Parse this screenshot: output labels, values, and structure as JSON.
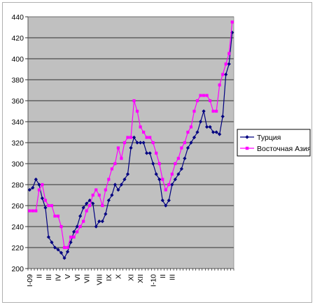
{
  "chart_data": {
    "type": "line",
    "title": "",
    "xlabel": "",
    "ylabel": "",
    "ylim": [
      200,
      440
    ],
    "ytick_step": 20,
    "grid": "horizontal",
    "plot_background": "#c0c0c0",
    "legend_position": "right",
    "x_tick_labels": [
      {
        "index": 0,
        "label": "I-09"
      },
      {
        "index": 3,
        "label": "II"
      },
      {
        "index": 6,
        "label": "III"
      },
      {
        "index": 9,
        "label": "IV"
      },
      {
        "index": 12,
        "label": "V"
      },
      {
        "index": 15,
        "label": "VI"
      },
      {
        "index": 18,
        "label": "VII"
      },
      {
        "index": 22,
        "label": "VIII"
      },
      {
        "index": 25,
        "label": "IX"
      },
      {
        "index": 28,
        "label": "X"
      },
      {
        "index": 32,
        "label": "XI"
      },
      {
        "index": 35,
        "label": "XII"
      },
      {
        "index": 39,
        "label": "I-10"
      },
      {
        "index": 42,
        "label": "II"
      },
      {
        "index": 45,
        "label": "III"
      }
    ],
    "series": [
      {
        "name": "Турция",
        "color": "#000080",
        "marker": "diamond",
        "values": [
          275,
          277,
          285,
          280,
          267,
          258,
          230,
          225,
          220,
          218,
          215,
          210,
          216,
          225,
          235,
          240,
          250,
          258,
          262,
          265,
          262,
          240,
          245,
          245,
          252,
          265,
          270,
          280,
          275,
          280,
          285,
          290,
          315,
          325,
          320,
          320,
          320,
          310,
          310,
          300,
          290,
          285,
          265,
          260,
          265,
          280,
          285,
          290,
          295,
          305,
          315,
          320,
          325,
          330,
          340,
          350,
          335,
          335,
          330,
          330,
          328,
          345,
          385,
          395,
          425
        ]
      },
      {
        "name": "Восточная Азия",
        "color": "#ff00ff",
        "marker": "square",
        "values": [
          255,
          255,
          255,
          275,
          280,
          265,
          260,
          260,
          250,
          250,
          240,
          220,
          220,
          230,
          230,
          235,
          240,
          245,
          255,
          260,
          270,
          275,
          270,
          260,
          275,
          285,
          295,
          300,
          315,
          305,
          320,
          325,
          325,
          360,
          350,
          335,
          330,
          325,
          325,
          320,
          310,
          300,
          285,
          275,
          280,
          290,
          300,
          305,
          315,
          320,
          330,
          335,
          350,
          360,
          365,
          365,
          365,
          360,
          350,
          350,
          375,
          385,
          395,
          405,
          435
        ]
      }
    ]
  }
}
